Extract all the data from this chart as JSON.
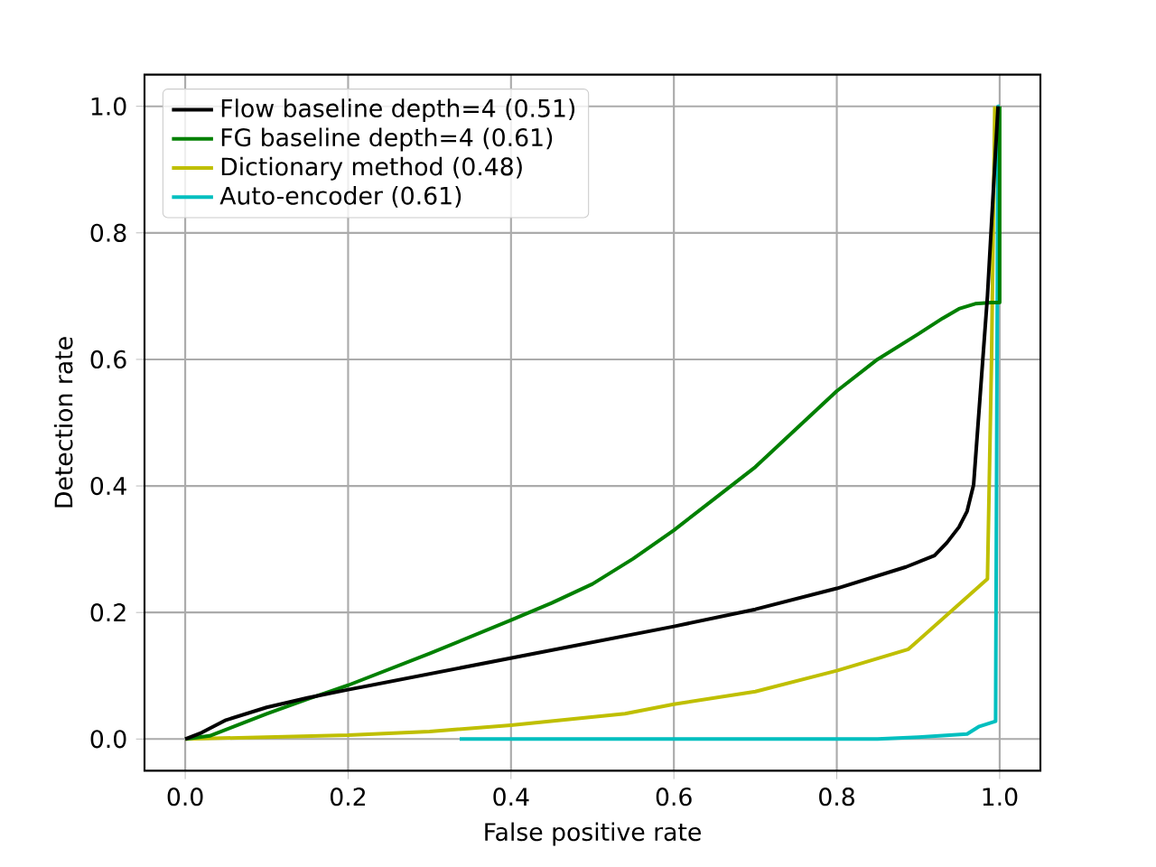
{
  "chart_data": {
    "type": "line",
    "xlabel": "False positive rate",
    "ylabel": "Detection rate",
    "xlim": [
      -0.05,
      1.05
    ],
    "ylim": [
      -0.05,
      1.05
    ],
    "xticks": [
      {
        "value": 0,
        "label": "0.0"
      },
      0.2,
      0.4,
      0.6,
      0.8,
      {
        "value": 1,
        "label": "1.0"
      }
    ],
    "yticks": [
      {
        "value": 0,
        "label": "0.0"
      },
      0.2,
      0.4,
      0.6,
      0.8,
      {
        "value": 1,
        "label": "1.0"
      }
    ],
    "grid": true,
    "legend": "top left",
    "marker": "none",
    "line_style": "solid",
    "series": [
      {
        "name": "Flow baseline depth=4 (0.51)",
        "color": "#000000",
        "x": [
          0,
          0.02,
          0.05,
          0.1,
          0.15,
          0.2,
          0.3,
          0.4,
          0.5,
          0.6,
          0.7,
          0.8,
          0.885,
          0.92,
          0.935,
          0.95,
          0.96,
          0.968,
          0.985,
          0.998
        ],
        "values": [
          0,
          0.01,
          0.03,
          0.05,
          0.065,
          0.078,
          0.103,
          0.128,
          0.153,
          0.178,
          0.205,
          0.238,
          0.272,
          0.29,
          0.31,
          0.335,
          0.36,
          0.402,
          0.7,
          1.0
        ]
      },
      {
        "name": "FG baseline depth=4 (0.61)",
        "color": "#008000",
        "x": [
          0,
          0.03,
          0.06,
          0.1,
          0.15,
          0.2,
          0.3,
          0.4,
          0.45,
          0.5,
          0.55,
          0.6,
          0.65,
          0.7,
          0.75,
          0.8,
          0.85,
          0.9,
          0.93,
          0.95,
          0.97,
          0.99,
          1.0,
          1.0
        ],
        "values": [
          0,
          0.005,
          0.02,
          0.04,
          0.063,
          0.085,
          0.135,
          0.188,
          0.215,
          0.245,
          0.285,
          0.33,
          0.38,
          0.43,
          0.49,
          0.55,
          0.6,
          0.64,
          0.665,
          0.68,
          0.688,
          0.69,
          0.69,
          1.0
        ]
      },
      {
        "name": "Dictionary method (0.48)",
        "color": "#bfbf00",
        "x": [
          0,
          0.2,
          0.3,
          0.4,
          0.54,
          0.6,
          0.7,
          0.8,
          0.888,
          0.985,
          0.99,
          0.994
        ],
        "values": [
          0,
          0.006,
          0.012,
          0.022,
          0.04,
          0.055,
          0.075,
          0.108,
          0.142,
          0.253,
          0.6,
          1.0
        ]
      },
      {
        "name": "Auto-encoder (0.61)",
        "color": "#00bfbf",
        "x": [
          0.337,
          0.85,
          0.9,
          0.96,
          0.975,
          0.995,
          0.998,
          1.0
        ],
        "values": [
          0,
          0,
          0.003,
          0.008,
          0.02,
          0.028,
          1.0,
          1.0
        ]
      }
    ]
  }
}
